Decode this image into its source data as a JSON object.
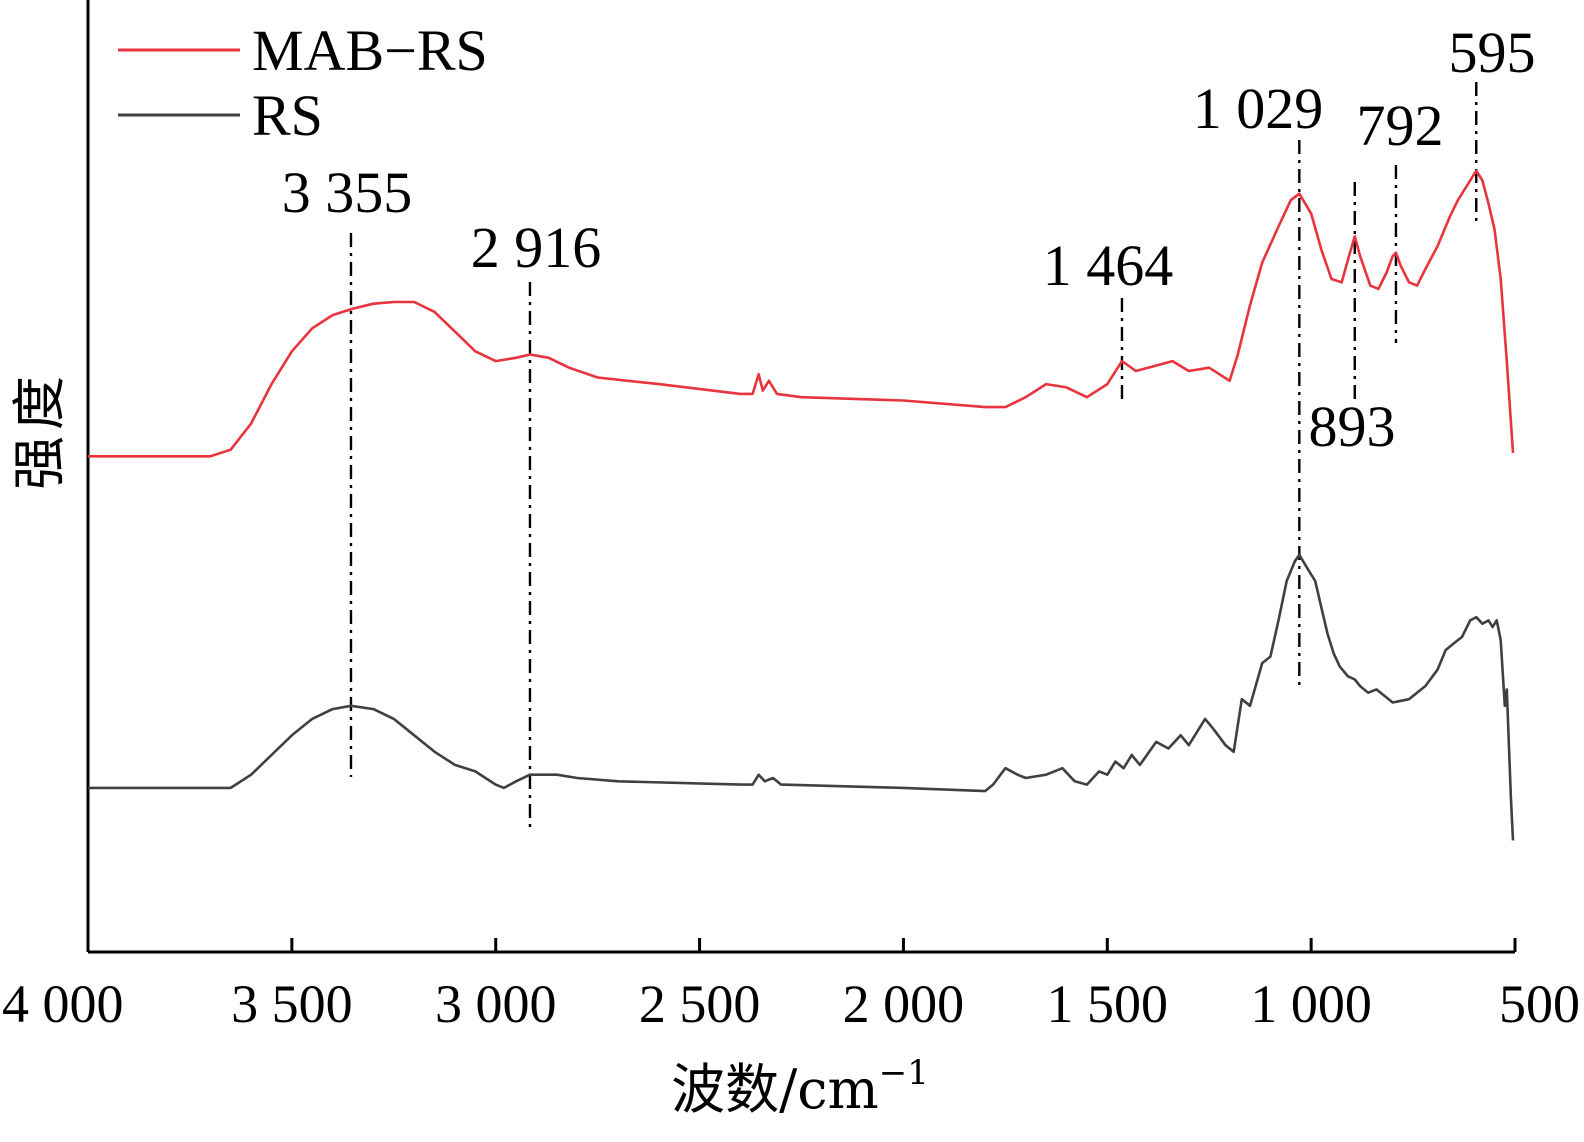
{
  "chart_data": {
    "type": "line",
    "xlabel": "波数/cm",
    "xlabel_sup": "−1",
    "ylabel": "强度",
    "xlim": [
      4000,
      500
    ],
    "x_reversed": true,
    "y_ticks_shown": false,
    "ylim": [
      -0.35,
      2.55
    ],
    "x_ticks": [
      {
        "value": 4000,
        "label": "4 000"
      },
      {
        "value": 3500,
        "label": "3 500"
      },
      {
        "value": 3000,
        "label": "3 000"
      },
      {
        "value": 2500,
        "label": "2 500"
      },
      {
        "value": 2000,
        "label": "2 000"
      },
      {
        "value": 1500,
        "label": "1 500"
      },
      {
        "value": 1000,
        "label": "1 000"
      },
      {
        "value": 500,
        "label": "500"
      }
    ],
    "legend": {
      "position": "top-left"
    },
    "series": [
      {
        "name": "MAB−RS",
        "color": "#e8343c",
        "points": [
          [
            4000,
            1.16
          ],
          [
            3800,
            1.16
          ],
          [
            3700,
            1.16
          ],
          [
            3650,
            1.18
          ],
          [
            3600,
            1.26
          ],
          [
            3550,
            1.38
          ],
          [
            3500,
            1.48
          ],
          [
            3450,
            1.55
          ],
          [
            3400,
            1.59
          ],
          [
            3350,
            1.61
          ],
          [
            3300,
            1.625
          ],
          [
            3250,
            1.63
          ],
          [
            3200,
            1.63
          ],
          [
            3150,
            1.6
          ],
          [
            3100,
            1.54
          ],
          [
            3050,
            1.48
          ],
          [
            3000,
            1.45
          ],
          [
            2950,
            1.46
          ],
          [
            2916,
            1.47
          ],
          [
            2870,
            1.46
          ],
          [
            2820,
            1.43
          ],
          [
            2750,
            1.4
          ],
          [
            2600,
            1.38
          ],
          [
            2400,
            1.35
          ],
          [
            2370,
            1.35
          ],
          [
            2355,
            1.41
          ],
          [
            2345,
            1.36
          ],
          [
            2330,
            1.39
          ],
          [
            2310,
            1.35
          ],
          [
            2250,
            1.34
          ],
          [
            2000,
            1.33
          ],
          [
            1800,
            1.31
          ],
          [
            1750,
            1.31
          ],
          [
            1700,
            1.34
          ],
          [
            1650,
            1.38
          ],
          [
            1600,
            1.37
          ],
          [
            1550,
            1.34
          ],
          [
            1500,
            1.38
          ],
          [
            1464,
            1.45
          ],
          [
            1430,
            1.42
          ],
          [
            1400,
            1.43
          ],
          [
            1340,
            1.45
          ],
          [
            1300,
            1.42
          ],
          [
            1250,
            1.43
          ],
          [
            1200,
            1.39
          ],
          [
            1180,
            1.47
          ],
          [
            1150,
            1.62
          ],
          [
            1120,
            1.75
          ],
          [
            1080,
            1.86
          ],
          [
            1050,
            1.94
          ],
          [
            1029,
            1.96
          ],
          [
            1000,
            1.9
          ],
          [
            975,
            1.79
          ],
          [
            950,
            1.7
          ],
          [
            925,
            1.69
          ],
          [
            905,
            1.78
          ],
          [
            893,
            1.83
          ],
          [
            880,
            1.77
          ],
          [
            855,
            1.68
          ],
          [
            835,
            1.67
          ],
          [
            815,
            1.72
          ],
          [
            800,
            1.77
          ],
          [
            792,
            1.78
          ],
          [
            780,
            1.74
          ],
          [
            760,
            1.69
          ],
          [
            740,
            1.68
          ],
          [
            720,
            1.73
          ],
          [
            690,
            1.8
          ],
          [
            660,
            1.89
          ],
          [
            640,
            1.94
          ],
          [
            620,
            1.98
          ],
          [
            595,
            2.03
          ],
          [
            580,
            2.0
          ],
          [
            565,
            1.93
          ],
          [
            550,
            1.85
          ],
          [
            535,
            1.7
          ],
          [
            520,
            1.45
          ],
          [
            505,
            1.17
          ]
        ],
        "annotations": [
          {
            "x": 3355,
            "label": "3 355"
          },
          {
            "x": 2916,
            "label": "2 916"
          },
          {
            "x": 1464,
            "label": "1 464"
          },
          {
            "x": 1029,
            "label": "1 029"
          },
          {
            "x": 893,
            "label": "893"
          },
          {
            "x": 792,
            "label": "792"
          },
          {
            "x": 595,
            "label": "595"
          }
        ]
      },
      {
        "name": "RS",
        "color": "#404040",
        "points": [
          [
            4000,
            0.15
          ],
          [
            3800,
            0.15
          ],
          [
            3700,
            0.15
          ],
          [
            3650,
            0.15
          ],
          [
            3600,
            0.19
          ],
          [
            3550,
            0.25
          ],
          [
            3500,
            0.31
          ],
          [
            3450,
            0.36
          ],
          [
            3400,
            0.39
          ],
          [
            3355,
            0.4
          ],
          [
            3300,
            0.39
          ],
          [
            3250,
            0.36
          ],
          [
            3200,
            0.31
          ],
          [
            3150,
            0.26
          ],
          [
            3100,
            0.22
          ],
          [
            3050,
            0.2
          ],
          [
            3000,
            0.16
          ],
          [
            2980,
            0.15
          ],
          [
            2950,
            0.17
          ],
          [
            2916,
            0.19
          ],
          [
            2850,
            0.19
          ],
          [
            2800,
            0.18
          ],
          [
            2700,
            0.17
          ],
          [
            2400,
            0.16
          ],
          [
            2370,
            0.16
          ],
          [
            2355,
            0.19
          ],
          [
            2340,
            0.17
          ],
          [
            2320,
            0.18
          ],
          [
            2300,
            0.16
          ],
          [
            2000,
            0.15
          ],
          [
            1800,
            0.14
          ],
          [
            1780,
            0.16
          ],
          [
            1750,
            0.21
          ],
          [
            1720,
            0.19
          ],
          [
            1700,
            0.18
          ],
          [
            1650,
            0.19
          ],
          [
            1610,
            0.21
          ],
          [
            1580,
            0.17
          ],
          [
            1550,
            0.16
          ],
          [
            1520,
            0.2
          ],
          [
            1500,
            0.19
          ],
          [
            1480,
            0.23
          ],
          [
            1460,
            0.21
          ],
          [
            1440,
            0.25
          ],
          [
            1420,
            0.22
          ],
          [
            1380,
            0.29
          ],
          [
            1350,
            0.27
          ],
          [
            1320,
            0.31
          ],
          [
            1300,
            0.28
          ],
          [
            1260,
            0.36
          ],
          [
            1240,
            0.33
          ],
          [
            1210,
            0.28
          ],
          [
            1190,
            0.26
          ],
          [
            1170,
            0.42
          ],
          [
            1150,
            0.4
          ],
          [
            1120,
            0.53
          ],
          [
            1100,
            0.55
          ],
          [
            1080,
            0.66
          ],
          [
            1060,
            0.78
          ],
          [
            1040,
            0.84
          ],
          [
            1029,
            0.86
          ],
          [
            1010,
            0.82
          ],
          [
            990,
            0.78
          ],
          [
            975,
            0.7
          ],
          [
            960,
            0.62
          ],
          [
            945,
            0.56
          ],
          [
            930,
            0.52
          ],
          [
            910,
            0.49
          ],
          [
            893,
            0.48
          ],
          [
            880,
            0.46
          ],
          [
            860,
            0.44
          ],
          [
            840,
            0.45
          ],
          [
            820,
            0.43
          ],
          [
            800,
            0.41
          ],
          [
            760,
            0.42
          ],
          [
            720,
            0.46
          ],
          [
            690,
            0.51
          ],
          [
            670,
            0.57
          ],
          [
            650,
            0.59
          ],
          [
            630,
            0.61
          ],
          [
            610,
            0.66
          ],
          [
            595,
            0.67
          ],
          [
            580,
            0.65
          ],
          [
            565,
            0.66
          ],
          [
            555,
            0.64
          ],
          [
            545,
            0.66
          ],
          [
            535,
            0.6
          ],
          [
            525,
            0.4
          ],
          [
            520,
            0.45
          ],
          [
            510,
            0.12
          ],
          [
            505,
            -0.01
          ]
        ]
      }
    ]
  }
}
